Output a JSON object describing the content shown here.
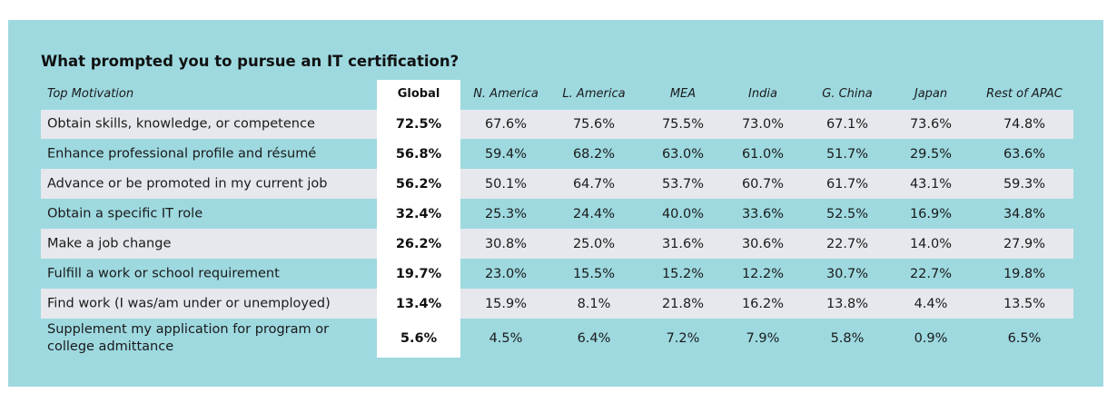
{
  "chart_data": {
    "type": "table",
    "title": "What prompted you to pursue an IT certification?",
    "row_header": "Top Motivation",
    "columns": [
      "Global",
      "N. America",
      "L. America",
      "MEA",
      "India",
      "G. China",
      "Japan",
      "Rest of APAC"
    ],
    "rows": [
      {
        "label": "Obtain skills, knowledge, or competence",
        "values": [
          "72.5%",
          "67.6%",
          "75.6%",
          "75.5%",
          "73.0%",
          "67.1%",
          "73.6%",
          "74.8%"
        ]
      },
      {
        "label": "Enhance professional profile and résumé",
        "values": [
          "56.8%",
          "59.4%",
          "68.2%",
          "63.0%",
          "61.0%",
          "51.7%",
          "29.5%",
          "63.6%"
        ]
      },
      {
        "label": "Advance or be promoted in my current job",
        "values": [
          "56.2%",
          "50.1%",
          "64.7%",
          "53.7%",
          "60.7%",
          "61.7%",
          "43.1%",
          "59.3%"
        ]
      },
      {
        "label": "Obtain a specific IT role",
        "values": [
          "32.4%",
          "25.3%",
          "24.4%",
          "40.0%",
          "33.6%",
          "52.5%",
          "16.9%",
          "34.8%"
        ]
      },
      {
        "label": "Make a job change",
        "values": [
          "26.2%",
          "30.8%",
          "25.0%",
          "31.6%",
          "30.6%",
          "22.7%",
          "14.0%",
          "27.9%"
        ]
      },
      {
        "label": "Fulfill a work or school requirement",
        "values": [
          "19.7%",
          "23.0%",
          "15.5%",
          "15.2%",
          "12.2%",
          "30.7%",
          "22.7%",
          "19.8%"
        ]
      },
      {
        "label": "Find work (I was/am under or unemployed)",
        "values": [
          "13.4%",
          "15.9%",
          "8.1%",
          "21.8%",
          "16.2%",
          "13.8%",
          "4.4%",
          "13.5%"
        ]
      },
      {
        "label": "Supplement my application for program or college admittance",
        "values": [
          "5.6%",
          "4.5%",
          "6.4%",
          "7.2%",
          "7.9%",
          "5.8%",
          "0.9%",
          "6.5%"
        ]
      }
    ]
  },
  "colors": {
    "panel_background": "#9ed9e0",
    "alternate_row": "#e6e8ed",
    "highlight_column": "#ffffff"
  }
}
